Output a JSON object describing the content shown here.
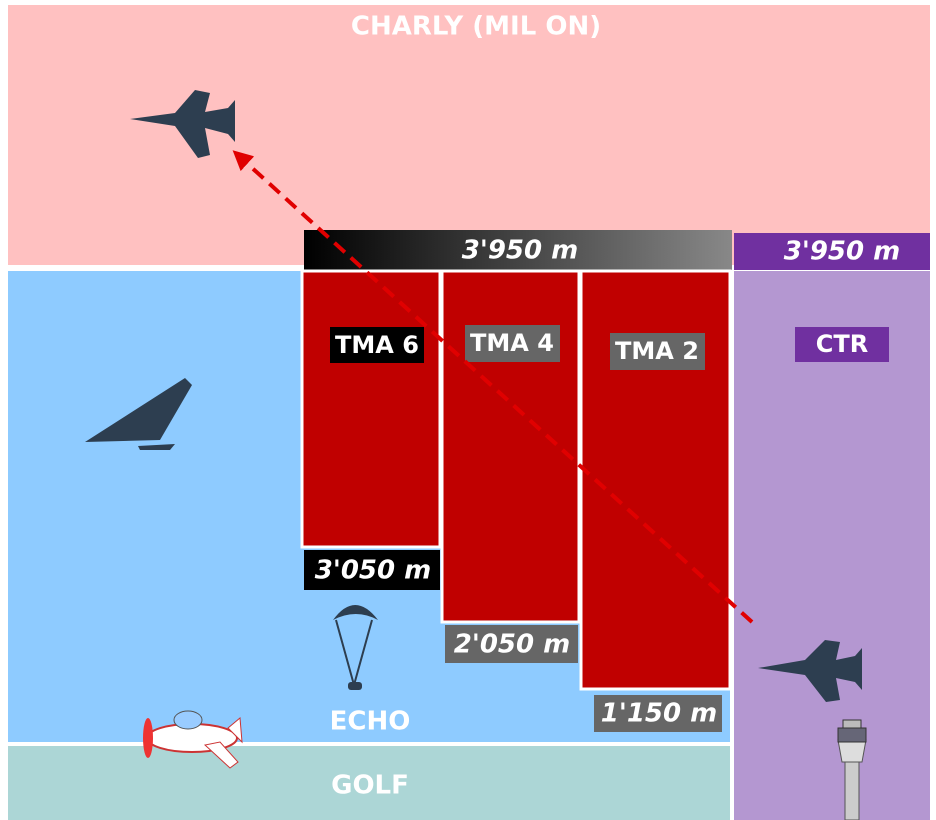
{
  "airspaces": {
    "charly": "CHARLY (MIL ON)",
    "echo": "ECHO",
    "golf": "GOLF",
    "tma6": "TMA 6",
    "tma4": "TMA 4",
    "tma2": "TMA 2",
    "ctr": "CTR"
  },
  "altitudes": {
    "tma_ceiling": "3'950 m",
    "ctr_ceiling": "3'950 m",
    "tma6_floor": "3'050 m",
    "tma4_floor": "2'050 m",
    "tma2_floor": "1'150 m"
  }
}
